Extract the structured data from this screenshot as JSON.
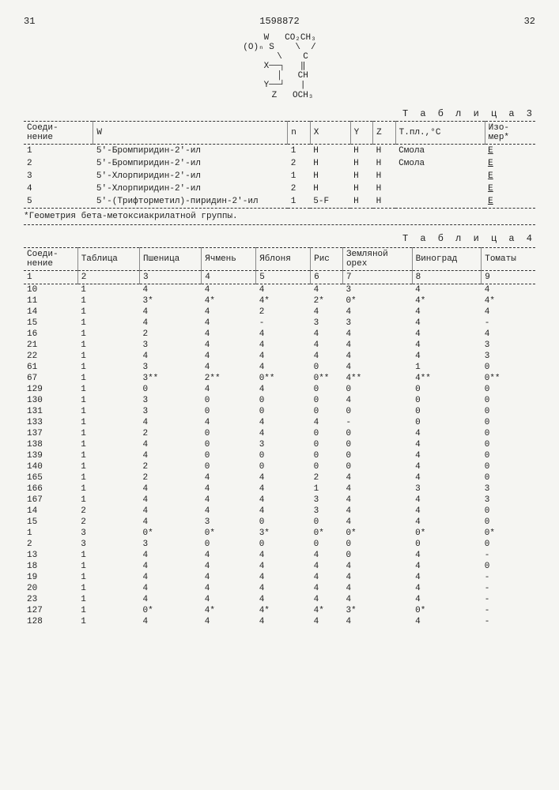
{
  "page": {
    "left_num": "31",
    "doc_num": "1598872",
    "right_num": "32"
  },
  "chem_lines": [
    "    W   CO₂CH₃",
    "(O)ₙ S    \\  /",
    "     \\    C",
    "  X──┐   ‖",
    "     │   CH",
    "  Y──┘   |",
    "     Z   OCH₃"
  ],
  "table3": {
    "caption": "Т а б л и ц а  3",
    "headers": [
      "Соеди-\nнение",
      "W",
      "n",
      "X",
      "Y",
      "Z",
      "Т.пл.,°С",
      "Изо-\nмер*"
    ],
    "rows": [
      [
        "1",
        "5'-Бромпиридин-2'-ил",
        "1",
        "H",
        "H",
        "H",
        "Смола",
        "E"
      ],
      [
        "2",
        "5'-Бромпиридин-2'-ил",
        "2",
        "H",
        "H",
        "H",
        "Смола",
        "E"
      ],
      [
        "3",
        "5'-Хлорпиридин-2'-ил",
        "1",
        "H",
        "H",
        "H",
        "",
        "E"
      ],
      [
        "4",
        "5'-Хлорпиридин-2'-ил",
        "2",
        "H",
        "H",
        "H",
        "",
        "E"
      ],
      [
        "5",
        "5'-(Трифторметил)-пиридин-2'-ил",
        "1",
        "5-F",
        "H",
        "H",
        "",
        "E"
      ]
    ],
    "footnote": "*Геометрия бета-метоксиакрилатной группы."
  },
  "table4": {
    "caption": "Т а б л и ц а  4",
    "headers": [
      "Соеди-\nнение",
      "Таблица",
      "Пшеница",
      "Ячмень",
      "Яблоня",
      "Рис",
      "Земляной\nорех",
      "Виноград",
      "Томаты"
    ],
    "numheaders": [
      "1",
      "2",
      "3",
      "4",
      "5",
      "6",
      "7",
      "8",
      "9"
    ],
    "rows": [
      [
        "10",
        "1",
        "4",
        "4",
        "4",
        "4",
        "3",
        "4",
        "4"
      ],
      [
        "11",
        "1",
        "3*",
        "4*",
        "4*",
        "2*",
        "0*",
        "4*",
        "4*"
      ],
      [
        "14",
        "1",
        "4",
        "4",
        "2",
        "4",
        "4",
        "4",
        "4"
      ],
      [
        "15",
        "1",
        "4",
        "4",
        "-",
        "3",
        "3",
        "4",
        "-"
      ],
      [
        "16",
        "1",
        "2",
        "4",
        "4",
        "4",
        "4",
        "4",
        "4"
      ],
      [
        "21",
        "1",
        "3",
        "4",
        "4",
        "4",
        "4",
        "4",
        "3"
      ],
      [
        "22",
        "1",
        "4",
        "4",
        "4",
        "4",
        "4",
        "4",
        "3"
      ],
      [
        "61",
        "1",
        "3",
        "4",
        "4",
        "0",
        "4",
        "1",
        "0"
      ],
      [
        "67",
        "1",
        "3**",
        "2**",
        "0**",
        "0**",
        "4**",
        "4**",
        "0**"
      ],
      [
        "129",
        "1",
        "0",
        "4",
        "4",
        "0",
        "0",
        "0",
        "0"
      ],
      [
        "130",
        "1",
        "3",
        "0",
        "0",
        "0",
        "4",
        "0",
        "0"
      ],
      [
        "131",
        "1",
        "3",
        "0",
        "0",
        "0",
        "0",
        "0",
        "0"
      ],
      [
        "133",
        "1",
        "4",
        "4",
        "4",
        "4",
        "-",
        "0",
        "0"
      ],
      [
        "137",
        "1",
        "2",
        "0",
        "4",
        "0",
        "0",
        "4",
        "0"
      ],
      [
        "138",
        "1",
        "4",
        "0",
        "3",
        "0",
        "0",
        "4",
        "0"
      ],
      [
        "139",
        "1",
        "4",
        "0",
        "0",
        "0",
        "0",
        "4",
        "0"
      ],
      [
        "140",
        "1",
        "2",
        "0",
        "0",
        "0",
        "0",
        "4",
        "0"
      ],
      [
        "165",
        "1",
        "2",
        "4",
        "4",
        "2",
        "4",
        "4",
        "0"
      ],
      [
        "166",
        "1",
        "4",
        "4",
        "4",
        "1",
        "4",
        "3",
        "3"
      ],
      [
        "167",
        "1",
        "4",
        "4",
        "4",
        "3",
        "4",
        "4",
        "3"
      ],
      [
        "14",
        "2",
        "4",
        "4",
        "4",
        "3",
        "4",
        "4",
        "0"
      ],
      [
        "15",
        "2",
        "4",
        "3",
        "0",
        "0",
        "4",
        "4",
        "0"
      ],
      [
        "1",
        "3",
        "0*",
        "0*",
        "3*",
        "0*",
        "0*",
        "0*",
        "0*"
      ],
      [
        "2",
        "3",
        "3",
        "0",
        "0",
        "0",
        "0",
        "0",
        "0"
      ],
      [
        "13",
        "1",
        "4",
        "4",
        "4",
        "4",
        "0",
        "4",
        "-"
      ],
      [
        "18",
        "1",
        "4",
        "4",
        "4",
        "4",
        "4",
        "4",
        "0"
      ],
      [
        "19",
        "1",
        "4",
        "4",
        "4",
        "4",
        "4",
        "4",
        "-"
      ],
      [
        "20",
        "1",
        "4",
        "4",
        "4",
        "4",
        "4",
        "4",
        "-"
      ],
      [
        "23",
        "1",
        "4",
        "4",
        "4",
        "4",
        "4",
        "4",
        "-"
      ],
      [
        "127",
        "1",
        "0*",
        "4*",
        "4*",
        "4*",
        "3*",
        "0*",
        "-"
      ],
      [
        "128",
        "1",
        "4",
        "4",
        "4",
        "4",
        "4",
        "4",
        "-"
      ]
    ]
  }
}
